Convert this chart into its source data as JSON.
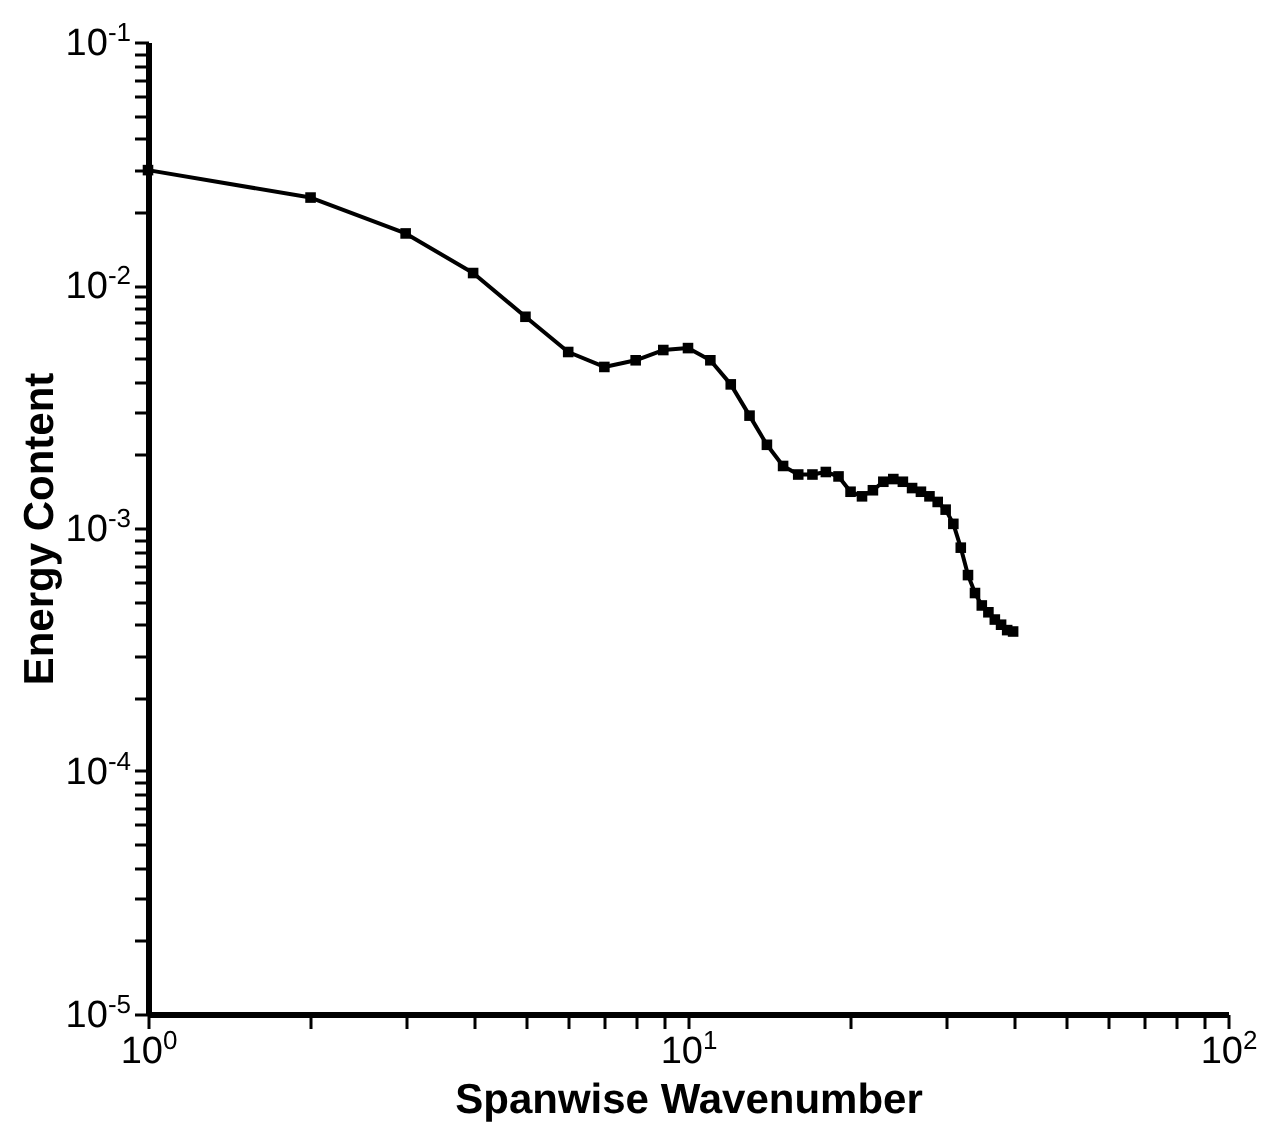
{
  "chart_data": {
    "type": "line",
    "xlabel": "Spanwise Wavenumber",
    "ylabel": "Energy Content",
    "log": "xy",
    "grid": false,
    "marker": "square",
    "line_style": "solid",
    "x": [
      1,
      2,
      3,
      4,
      5,
      6,
      7,
      8,
      9,
      10,
      11,
      12,
      13,
      14,
      15,
      16,
      17,
      18,
      19,
      20,
      21,
      22,
      23,
      24,
      25,
      26,
      27,
      28,
      29,
      30,
      31,
      32,
      33,
      34,
      35,
      36,
      37,
      38,
      39,
      40
    ],
    "series": [
      {
        "color": "#000000",
        "values": [
          0.0297,
          0.0229,
          0.0163,
          0.0112,
          0.0074,
          0.0053,
          0.0046,
          0.0049,
          0.0054,
          0.0055,
          0.0049,
          0.0039,
          0.0029,
          0.0022,
          0.0018,
          0.00166,
          0.00166,
          0.0017,
          0.00163,
          0.00141,
          0.00135,
          0.00143,
          0.00155,
          0.00159,
          0.00155,
          0.00146,
          0.00141,
          0.00135,
          0.00128,
          0.00119,
          0.00104,
          0.00083,
          0.00064,
          0.00054,
          0.00048,
          0.00045,
          0.00042,
          0.0004,
          0.00038,
          0.000375
        ]
      }
    ],
    "xlim": [
      1,
      100
    ],
    "ylim": [
      1e-05,
      0.1
    ],
    "xticks": [
      {
        "value": 1,
        "label": "10$^{0}$"
      },
      {
        "value": 2,
        "label": null
      },
      {
        "value": 3,
        "label": null
      },
      {
        "value": 4,
        "label": null
      },
      {
        "value": 5,
        "label": null
      },
      {
        "value": 6,
        "label": null
      },
      {
        "value": 7,
        "label": null
      },
      {
        "value": 8,
        "label": null
      },
      {
        "value": 9,
        "label": null
      },
      {
        "value": 10,
        "label": "10$^{1}$"
      },
      {
        "value": 20,
        "label": null
      },
      {
        "value": 30,
        "label": null
      },
      {
        "value": 40,
        "label": null
      },
      {
        "value": 50,
        "label": null
      },
      {
        "value": 60,
        "label": null
      },
      {
        "value": 70,
        "label": null
      },
      {
        "value": 80,
        "label": null
      },
      {
        "value": 90,
        "label": null
      },
      {
        "value": 100,
        "label": "10$^{2}$"
      }
    ],
    "yticks": [
      {
        "value": 1e-05,
        "label": "10$^{-5}$"
      },
      {
        "value": 2e-05,
        "label": null
      },
      {
        "value": 3e-05,
        "label": null
      },
      {
        "value": 4e-05,
        "label": null
      },
      {
        "value": 5e-05,
        "label": null
      },
      {
        "value": 6e-05,
        "label": null
      },
      {
        "value": 7e-05,
        "label": null
      },
      {
        "value": 8e-05,
        "label": null
      },
      {
        "value": 9e-05,
        "label": null
      },
      {
        "value": 0.0001,
        "label": "10$^{-4}$"
      },
      {
        "value": 0.0002,
        "label": null
      },
      {
        "value": 0.0003,
        "label": null
      },
      {
        "value": 0.0004,
        "label": null
      },
      {
        "value": 0.0005,
        "label": null
      },
      {
        "value": 0.0006,
        "label": null
      },
      {
        "value": 0.0007,
        "label": null
      },
      {
        "value": 0.0008,
        "label": null
      },
      {
        "value": 0.0009,
        "label": null
      },
      {
        "value": 0.001,
        "label": "10$^{-3}$"
      },
      {
        "value": 0.002,
        "label": null
      },
      {
        "value": 0.003,
        "label": null
      },
      {
        "value": 0.004,
        "label": null
      },
      {
        "value": 0.005,
        "label": null
      },
      {
        "value": 0.006,
        "label": null
      },
      {
        "value": 0.007,
        "label": null
      },
      {
        "value": 0.008,
        "label": null
      },
      {
        "value": 0.009,
        "label": null
      },
      {
        "value": 0.01,
        "label": "10$^{-2}$"
      },
      {
        "value": 0.02,
        "label": null
      },
      {
        "value": 0.03,
        "label": null
      },
      {
        "value": 0.04,
        "label": null
      },
      {
        "value": 0.05,
        "label": null
      },
      {
        "value": 0.06,
        "label": null
      },
      {
        "value": 0.07,
        "label": null
      },
      {
        "value": 0.08,
        "label": null
      },
      {
        "value": 0.09,
        "label": null
      },
      {
        "value": 0.1,
        "label": "10$^{-1}$"
      }
    ]
  }
}
